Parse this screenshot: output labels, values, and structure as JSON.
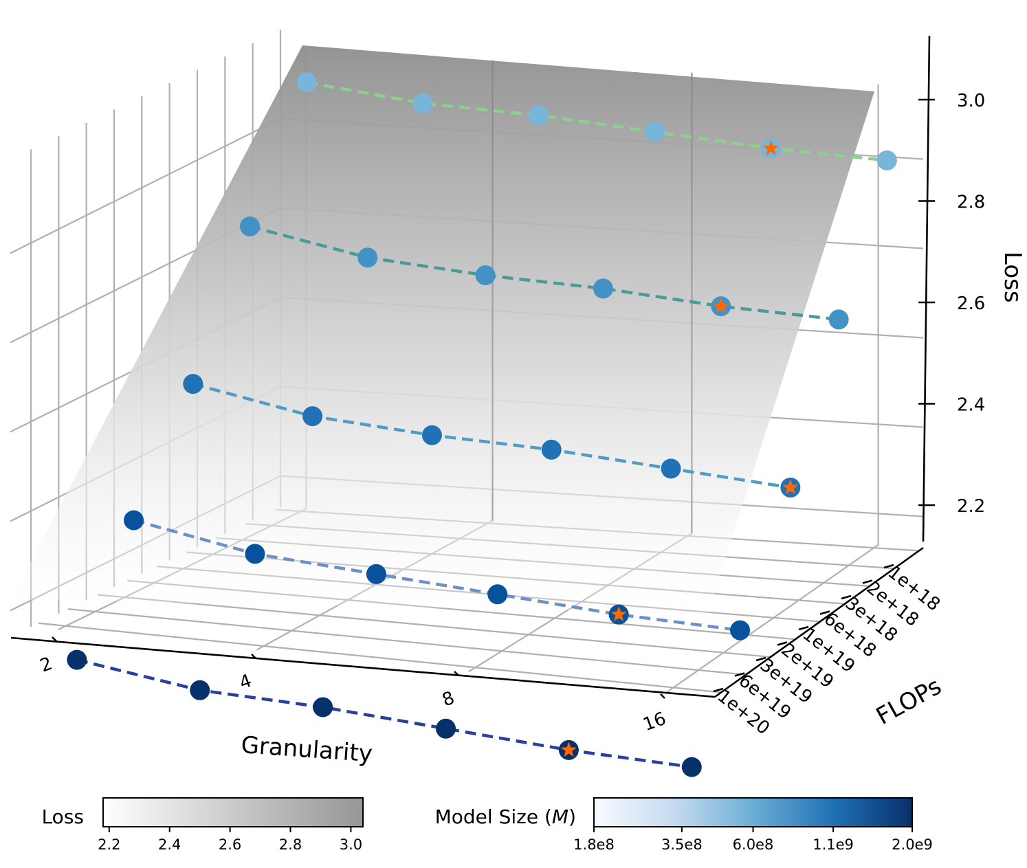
{
  "chart_data": {
    "type": "scatter",
    "title": "",
    "xlabel": "Granularity",
    "ylabel": "FLOPs",
    "zlabel": "Loss",
    "x_ticks": [
      "2",
      "4",
      "8",
      "16"
    ],
    "y_ticks": [
      "1e+18",
      "2e+18",
      "3e+18",
      "6e+18",
      "1e+19",
      "2e+19",
      "3e+19",
      "6e+19",
      "1e+20"
    ],
    "z_ticks": [
      "2.2",
      "2.4",
      "2.6",
      "2.8",
      "3.0"
    ],
    "zlim": [
      2.13,
      3.13
    ],
    "granularity_levels": [
      1,
      2,
      4,
      8,
      16,
      32
    ],
    "series": [
      {
        "name": "1.8e8",
        "color": "#77b5d9",
        "line_color": "#8ed08b",
        "loss": [
          3.1,
          3.07,
          3.06,
          3.04,
          3.02,
          3.01
        ],
        "best_index": 4
      },
      {
        "name": "3.5e8",
        "color": "#4292c6",
        "line_color": "#4a9a96",
        "loss": [
          2.84,
          2.79,
          2.77,
          2.76,
          2.74,
          2.73
        ],
        "best_index": 4
      },
      {
        "name": "6.0e8",
        "color": "#2171b5",
        "line_color": "#4f9ec0",
        "loss": [
          2.55,
          2.5,
          2.48,
          2.47,
          2.45,
          2.43
        ],
        "best_index": 5
      },
      {
        "name": "1.1e9",
        "color": "#08519c",
        "line_color": "#6a92c4",
        "loss": [
          2.31,
          2.26,
          2.24,
          2.22,
          2.2,
          2.19
        ],
        "best_index": 4
      },
      {
        "name": "2.0e9",
        "color": "#08306b",
        "line_color": "#2b3f9e",
        "loss": [
          2.06,
          2.02,
          2.01,
          1.99,
          1.97,
          1.96
        ],
        "best_index": 4
      }
    ],
    "optimal_marker": {
      "shape": "star",
      "color": "#ff6a00"
    },
    "surface": {
      "name": "fitted loss surface",
      "color_low": "#ffffff",
      "color_high": "#8c8c8c"
    },
    "colorbars": [
      {
        "label": "Loss",
        "ticks": [
          "2.2",
          "2.4",
          "2.6",
          "2.8",
          "3.0"
        ],
        "range": [
          2.18,
          3.04
        ],
        "colormap": "greys"
      },
      {
        "label_prefix": "Model Size (",
        "label_var": "M",
        "label_suffix": ")",
        "ticks": [
          "1.8e8",
          "3.5e8",
          "6.0e8",
          "1.1e9",
          "2.0e9"
        ],
        "range": [
          180000000.0,
          2000000000.0
        ],
        "scale": "log",
        "colormap": "blues"
      }
    ]
  }
}
